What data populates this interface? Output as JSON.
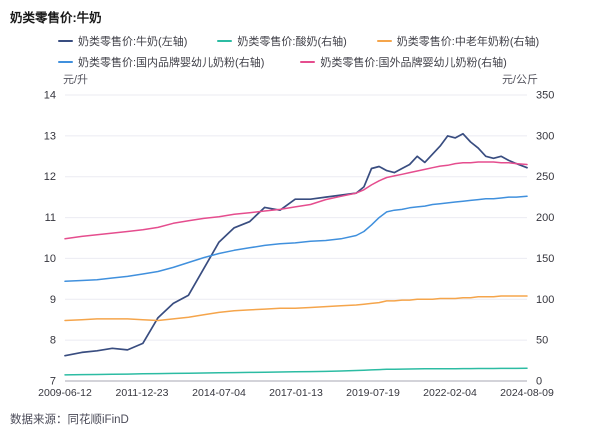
{
  "header": {
    "title": "奶类零售价:牛奶"
  },
  "source": {
    "text": "数据来源：同花顺iFinD"
  },
  "chart_data": {
    "type": "line",
    "title": "奶类零售价:牛奶",
    "grid": "horizontal",
    "legend_position": "top",
    "left_axis": {
      "unit_label": "元/升",
      "min": 7,
      "max": 14,
      "ticks": [
        14,
        13,
        12,
        11,
        10,
        9,
        8,
        7
      ]
    },
    "right_axis": {
      "unit_label": "元/公斤",
      "min": 0,
      "max": 350,
      "ticks": [
        350,
        300,
        250,
        200,
        150,
        100,
        50,
        0
      ]
    },
    "x_tick_labels": [
      "2009-06-12",
      "2011-12-23",
      "2014-07-04",
      "2017-01-13",
      "2019-07-19",
      "2022-02-04",
      "2024-08-09"
    ],
    "x_range": [
      2009.45,
      2024.6
    ],
    "x": [
      2009.45,
      2010,
      2010.5,
      2011,
      2011.5,
      2012,
      2012.5,
      2013,
      2013.5,
      2014,
      2014.5,
      2015,
      2015.5,
      2016,
      2016.5,
      2017,
      2017.5,
      2018,
      2018.5,
      2019,
      2019.25,
      2019.5,
      2019.75,
      2020,
      2020.25,
      2020.5,
      2020.75,
      2021,
      2021.25,
      2021.5,
      2021.75,
      2022,
      2022.25,
      2022.5,
      2022.75,
      2023,
      2023.25,
      2023.5,
      2023.75,
      2024,
      2024.25,
      2024.6
    ],
    "series": [
      {
        "name": "奶类零售价:牛奶(左轴)",
        "axis": "left",
        "color": "#394d80",
        "values": [
          7.62,
          7.7,
          7.74,
          7.8,
          7.76,
          7.92,
          8.55,
          8.9,
          9.1,
          9.75,
          10.4,
          10.75,
          10.9,
          11.25,
          11.18,
          11.45,
          11.45,
          11.5,
          11.55,
          11.6,
          11.75,
          12.2,
          12.25,
          12.15,
          12.1,
          12.2,
          12.3,
          12.5,
          12.35,
          12.55,
          12.75,
          13.0,
          12.95,
          13.05,
          12.85,
          12.7,
          12.5,
          12.45,
          12.5,
          12.4,
          12.32,
          12.22
        ]
      },
      {
        "name": "奶类零售价:酸奶(右轴)",
        "axis": "right",
        "color": "#2cbca3",
        "values": [
          7.5,
          7.8,
          8.0,
          8.3,
          8.5,
          8.8,
          9.0,
          9.3,
          9.5,
          9.8,
          10.0,
          10.3,
          10.5,
          10.8,
          11.0,
          11.2,
          11.5,
          11.8,
          12.2,
          12.8,
          13.2,
          13.6,
          14.0,
          14.3,
          14.5,
          14.6,
          14.7,
          14.8,
          14.9,
          15.0,
          15.0,
          15.1,
          15.1,
          15.2,
          15.2,
          15.3,
          15.3,
          15.3,
          15.4,
          15.4,
          15.4,
          15.5
        ]
      },
      {
        "name": "奶类零售价:中老年奶粉(右轴)",
        "axis": "right",
        "color": "#f5a54b",
        "values": [
          74,
          75,
          76,
          76,
          76,
          75,
          74,
          76,
          78,
          81,
          84,
          86,
          87,
          88,
          89,
          89,
          90,
          91,
          92,
          93,
          94,
          95,
          96,
          98,
          98,
          99,
          99,
          100,
          100,
          100,
          101,
          101,
          101,
          102,
          102,
          103,
          103,
          103,
          104,
          104,
          104,
          104
        ]
      },
      {
        "name": "奶类零售价:国内品牌婴幼儿奶粉(右轴)",
        "axis": "right",
        "color": "#4090dd",
        "values": [
          122,
          123,
          124,
          126,
          128,
          131,
          134,
          139,
          145,
          151,
          156,
          160,
          163,
          166,
          168,
          169,
          171,
          172,
          174,
          178,
          183,
          191,
          200,
          207,
          209,
          210,
          212,
          213,
          214,
          216,
          217,
          218,
          219,
          220,
          221,
          222,
          223,
          223,
          224,
          225,
          225,
          226
        ]
      },
      {
        "name": "奶类零售价:国外品牌婴幼儿奶粉(右轴)",
        "axis": "right",
        "color": "#e54d8e",
        "values": [
          174,
          177,
          179,
          181,
          183,
          185,
          188,
          193,
          196,
          199,
          201,
          204,
          206,
          208,
          210,
          213,
          216,
          222,
          226,
          230,
          234,
          240,
          245,
          249,
          251,
          253,
          255,
          257,
          259,
          261,
          263,
          264,
          266,
          267,
          267,
          268,
          268,
          268,
          267,
          267,
          266,
          265
        ]
      }
    ],
    "styles": {
      "gridline_color": "#ebebf2",
      "axisline_color": "#a7a7b3",
      "tick_label_color": "#36363e"
    }
  }
}
